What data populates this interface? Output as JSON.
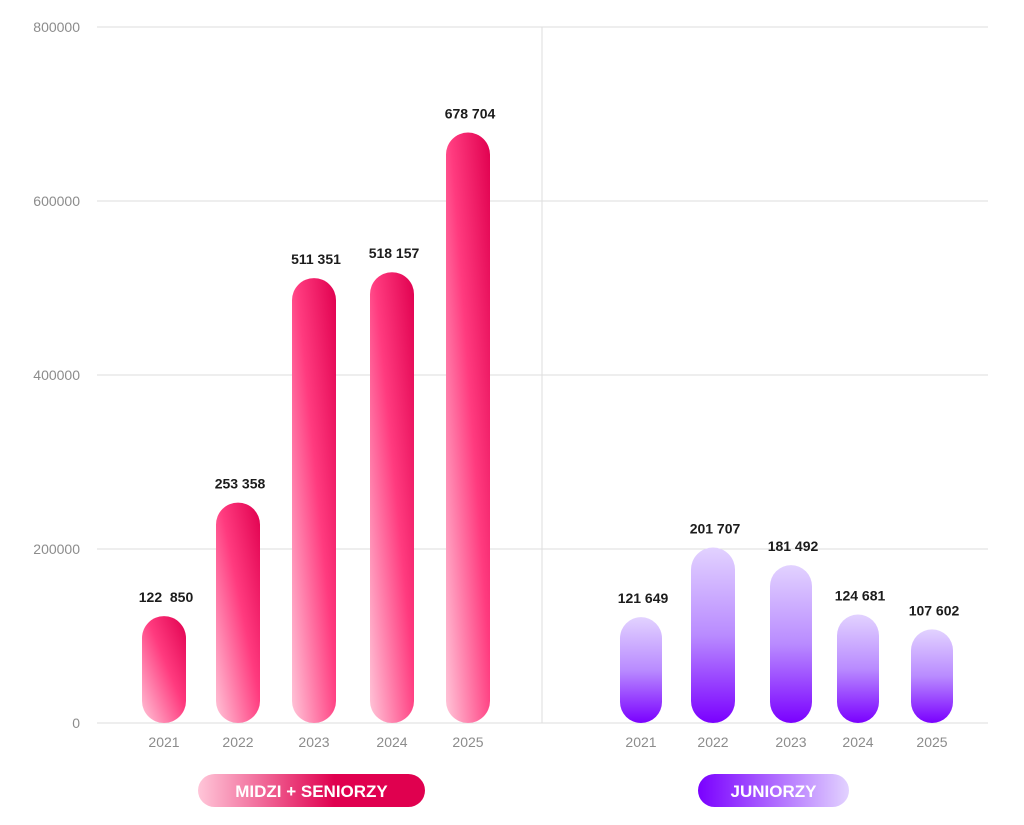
{
  "chart_data": {
    "type": "bar",
    "ylim": [
      0,
      800000
    ],
    "y_ticks": [
      "0",
      "200000",
      "400000",
      "600000",
      "800000"
    ],
    "grid": true,
    "groups": [
      {
        "name": "MIDZI + SENIORZY",
        "categories": [
          "2021",
          "2022",
          "2023",
          "2024",
          "2025"
        ],
        "values": [
          122850,
          253358,
          511351,
          518157,
          678704
        ],
        "labels": [
          "122  850",
          "253 358",
          "511 351",
          "518 157",
          "678 704"
        ],
        "colors": {
          "top": "#E0004F",
          "mid": "#FF3B7F",
          "bottom": "#FFC6D9"
        }
      },
      {
        "name": "JUNIORZY",
        "categories": [
          "2021",
          "2022",
          "2023",
          "2024",
          "2025"
        ],
        "values": [
          121649,
          201707,
          181492,
          124681,
          107602
        ],
        "labels": [
          "121 649",
          "201 707",
          "181 492",
          "124 681",
          "107 602"
        ],
        "colors": {
          "top": "#E2D2FF",
          "mid": "#B98BFF",
          "bottom": "#7A00FF"
        }
      }
    ]
  }
}
